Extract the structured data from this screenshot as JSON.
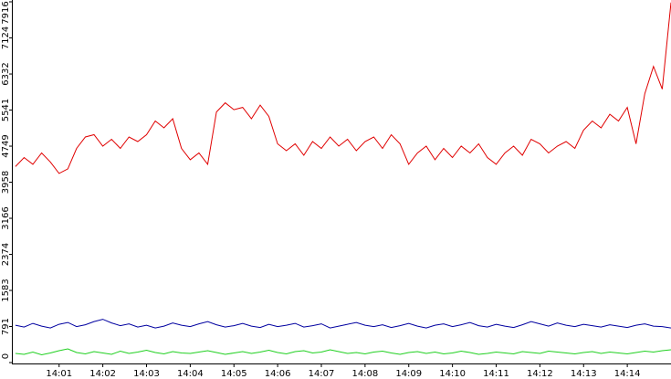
{
  "chart_data": {
    "type": "line",
    "x": [
      0.0,
      0.2,
      0.4,
      0.6,
      0.8,
      1.0,
      1.2,
      1.4,
      1.6,
      1.8,
      2.0,
      2.2,
      2.4,
      2.6,
      2.8,
      3.0,
      3.2,
      3.4,
      3.6,
      3.8,
      4.0,
      4.2,
      4.4,
      4.6,
      4.8,
      5.0,
      5.2,
      5.4,
      5.6,
      5.8,
      6.0,
      6.2,
      6.4,
      6.6,
      6.8,
      7.0,
      7.2,
      7.4,
      7.6,
      7.8,
      8.0,
      8.2,
      8.4,
      8.6,
      8.8,
      9.0,
      9.2,
      9.4,
      9.6,
      9.8,
      10.0,
      10.2,
      10.4,
      10.6,
      10.8,
      11.0,
      11.2,
      11.4,
      11.6,
      11.8,
      12.0,
      12.2,
      12.4,
      12.6,
      12.8,
      13.0,
      13.2,
      13.4,
      13.6,
      13.8,
      14.0,
      14.2,
      14.4,
      14.6,
      14.8,
      15.0
    ],
    "series": [
      {
        "name": "red",
        "color": "#e00000",
        "values": [
          4300,
          4500,
          4350,
          4600,
          4400,
          4150,
          4250,
          4700,
          4950,
          5000,
          4750,
          4900,
          4700,
          4950,
          4850,
          5000,
          5300,
          5150,
          5350,
          4700,
          4450,
          4600,
          4350,
          5500,
          5700,
          5550,
          5600,
          5350,
          5650,
          5400,
          4800,
          4650,
          4800,
          4550,
          4850,
          4700,
          4950,
          4750,
          4900,
          4650,
          4850,
          4950,
          4700,
          5000,
          4800,
          4350,
          4600,
          4750,
          4450,
          4700,
          4500,
          4750,
          4600,
          4800,
          4500,
          4350,
          4600,
          4750,
          4550,
          4900,
          4800,
          4600,
          4750,
          4850,
          4700,
          5100,
          5300,
          5150,
          5450,
          5300,
          5600,
          4800,
          5900,
          6500,
          6000,
          7900
        ]
      },
      {
        "name": "blue",
        "color": "#0000a0",
        "values": [
          820,
          780,
          860,
          800,
          760,
          840,
          880,
          790,
          830,
          900,
          950,
          870,
          810,
          850,
          780,
          820,
          760,
          800,
          870,
          820,
          790,
          850,
          900,
          830,
          780,
          810,
          860,
          800,
          770,
          840,
          790,
          820,
          860,
          780,
          810,
          850,
          760,
          800,
          840,
          880,
          820,
          790,
          830,
          770,
          810,
          860,
          800,
          760,
          820,
          850,
          790,
          830,
          880,
          810,
          780,
          840,
          800,
          770,
          830,
          900,
          850,
          800,
          870,
          820,
          790,
          840,
          810,
          780,
          830,
          800,
          770,
          820,
          850,
          800,
          790,
          760
        ]
      },
      {
        "name": "green",
        "color": "#20d020",
        "values": [
          200,
          180,
          230,
          170,
          210,
          260,
          300,
          220,
          190,
          240,
          210,
          180,
          250,
          200,
          230,
          270,
          220,
          190,
          240,
          210,
          200,
          230,
          260,
          220,
          180,
          210,
          240,
          200,
          230,
          270,
          220,
          190,
          240,
          260,
          210,
          230,
          280,
          240,
          200,
          220,
          190,
          230,
          250,
          210,
          180,
          220,
          240,
          200,
          230,
          190,
          210,
          250,
          220,
          180,
          200,
          230,
          210,
          190,
          240,
          220,
          200,
          250,
          230,
          210,
          190,
          220,
          240,
          200,
          230,
          210,
          190,
          220,
          250,
          230,
          260,
          280
        ]
      }
    ],
    "xlim": [
      -0.06,
      15
    ],
    "xticks": [
      {
        "value": 1,
        "label": "14:01"
      },
      {
        "value": 2,
        "label": "14:02"
      },
      {
        "value": 3,
        "label": "14:03"
      },
      {
        "value": 4,
        "label": "14:04"
      },
      {
        "value": 5,
        "label": "14:05"
      },
      {
        "value": 6,
        "label": "14:06"
      },
      {
        "value": 7,
        "label": "14:07"
      },
      {
        "value": 8,
        "label": "14:08"
      },
      {
        "value": 9,
        "label": "14:09"
      },
      {
        "value": 10,
        "label": "14:10"
      },
      {
        "value": 11,
        "label": "14:11"
      },
      {
        "value": 12,
        "label": "14:12"
      },
      {
        "value": 13,
        "label": "14:13"
      },
      {
        "value": 14,
        "label": "14:14"
      }
    ],
    "ylim": [
      0,
      7916
    ],
    "yticks": [
      0,
      791,
      1583,
      2374,
      3166,
      3958,
      4749,
      5541,
      6332,
      7124,
      7916
    ]
  }
}
